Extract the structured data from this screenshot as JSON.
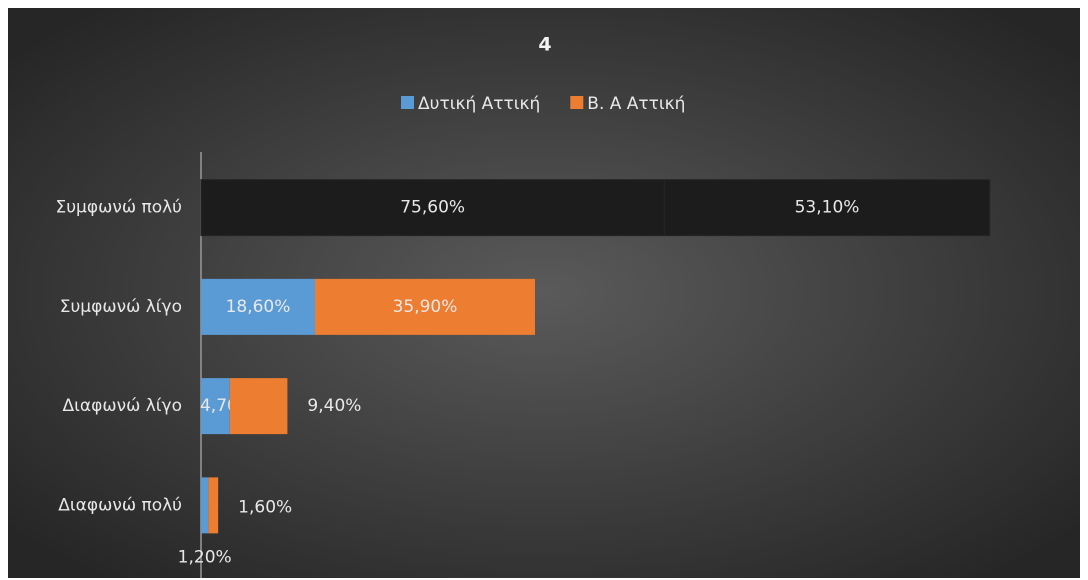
{
  "chart_data": {
    "type": "stacked_barh",
    "title": "4",
    "categories": [
      "Συμφωνώ πολύ",
      "Συμφωνώ λίγο",
      "Διαφωνώ λίγο",
      "Διαφωνώ πολύ"
    ],
    "series": [
      {
        "name": "Δυτική Αττική",
        "color": "#5b9bd5",
        "colors": [
          "#1c1c1c",
          "#5b9bd5",
          "#5b9bd5",
          "#5b9bd5"
        ],
        "values": [
          75.6,
          18.6,
          4.7,
          1.2
        ],
        "value_labels": [
          "75,60%",
          "18,60%",
          "4,70%",
          "1,20%"
        ]
      },
      {
        "name": "Β. Α Αττική",
        "color": "#ed7d31",
        "colors": [
          "#1c1c1c",
          "#ed7d31",
          "#ed7d31",
          "#ed7d31"
        ],
        "values": [
          53.1,
          35.9,
          9.4,
          1.6
        ],
        "value_labels": [
          "53,10%",
          "35,90%",
          "9,40%",
          "1,60%"
        ]
      }
    ],
    "xlim": [
      0,
      140
    ],
    "legend": "top"
  }
}
